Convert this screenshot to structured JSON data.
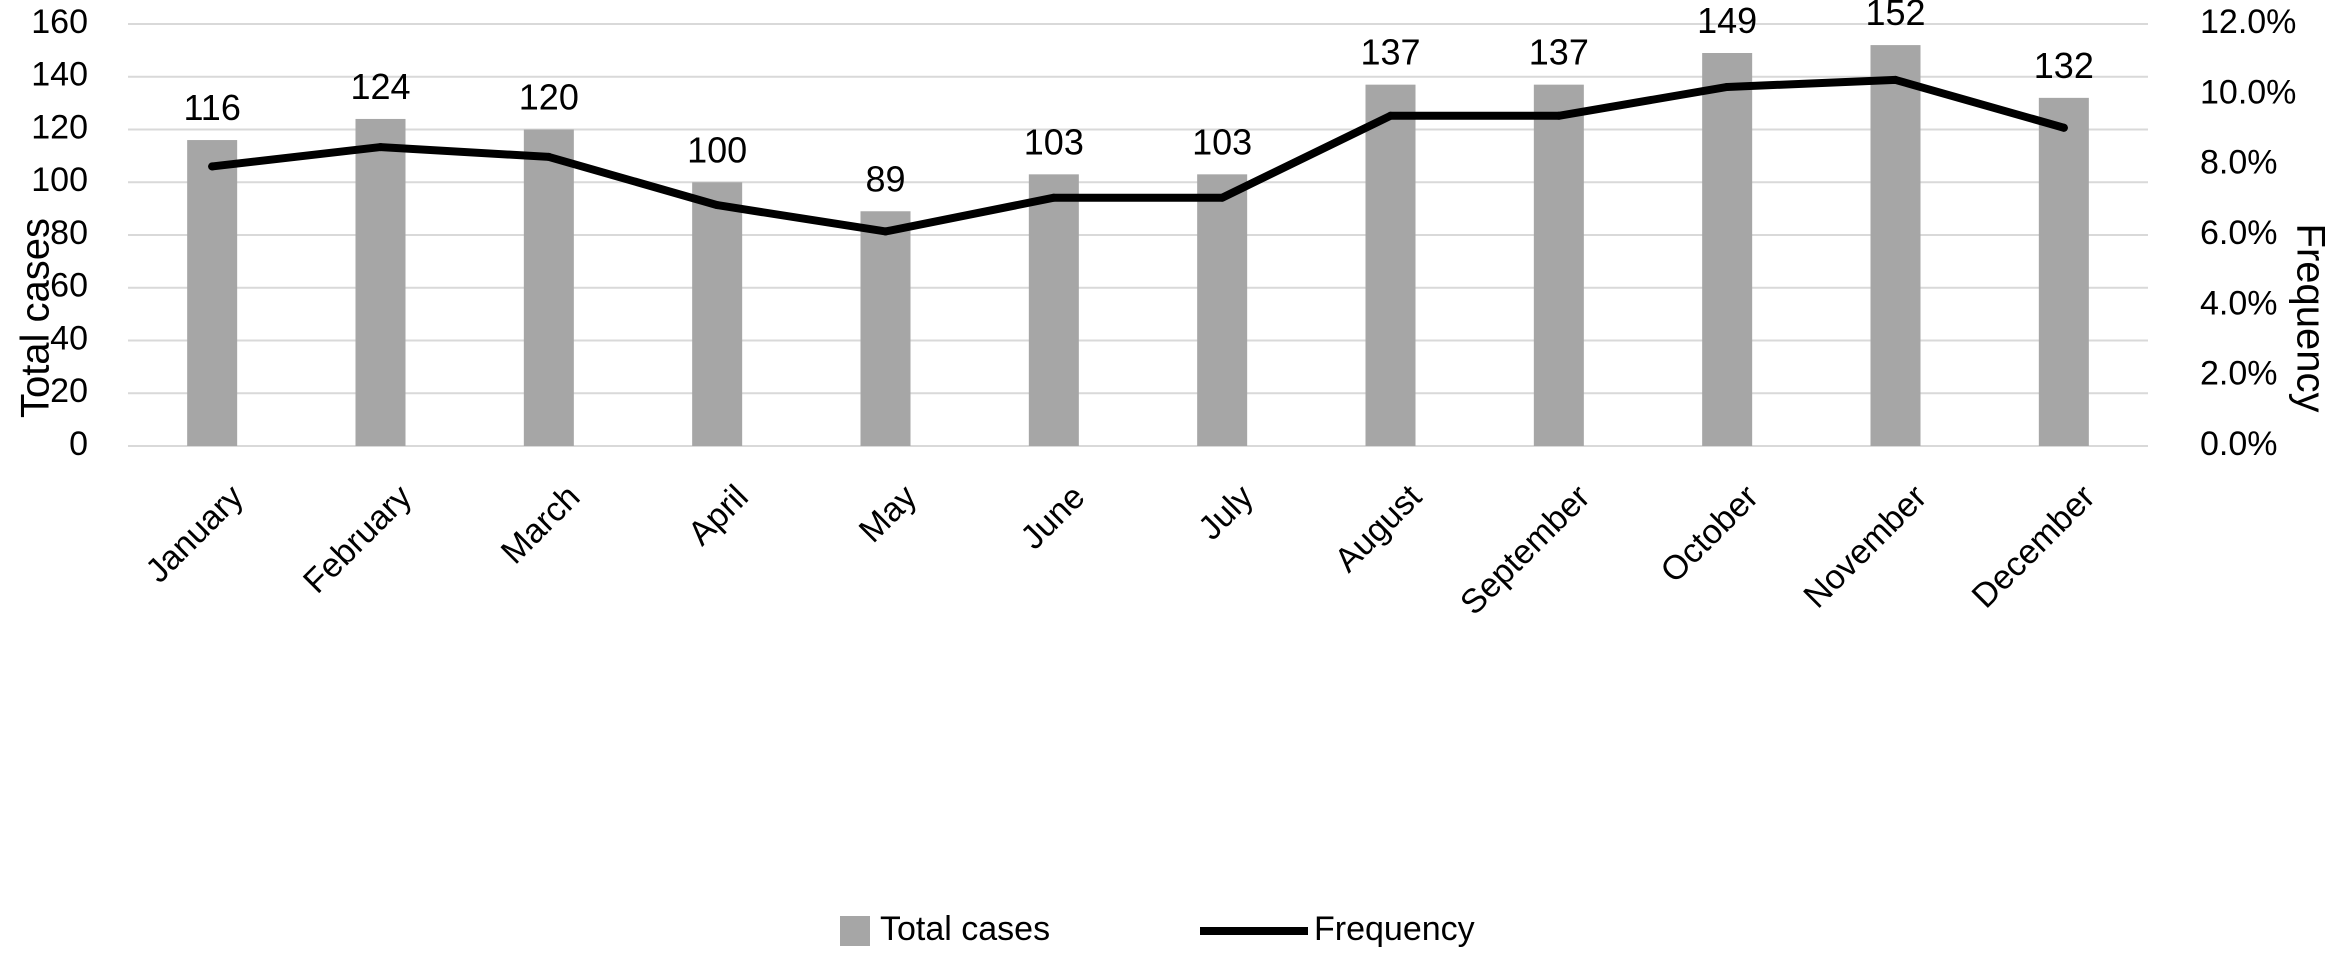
{
  "chart_data": {
    "type": "bar",
    "categories": [
      "January",
      "February",
      "March",
      "April",
      "May",
      "June",
      "July",
      "August",
      "September",
      "October",
      "November",
      "December"
    ],
    "series": [
      {
        "name": "Total cases",
        "type": "bar",
        "axis": "left",
        "values": [
          116,
          124,
          120,
          100,
          89,
          103,
          103,
          137,
          137,
          149,
          152,
          132
        ],
        "data_labels": [
          "116",
          "124",
          "120",
          "100",
          "89",
          "103",
          "103",
          "137",
          "137",
          "149",
          "152",
          "132"
        ],
        "color": "#a6a6a6"
      },
      {
        "name": "Frequency",
        "type": "line",
        "axis": "right",
        "values": [
          0.0795,
          0.085,
          0.0822,
          0.0685,
          0.061,
          0.0706,
          0.0706,
          0.0939,
          0.0939,
          0.1021,
          0.1041,
          0.0905
        ],
        "color": "#000000"
      }
    ],
    "ylabel": "Total cases",
    "y2label": "Frequency",
    "ylim": [
      0,
      160
    ],
    "y2lim": [
      0,
      0.12
    ],
    "yticks": [
      "0",
      "20",
      "40",
      "60",
      "80",
      "100",
      "120",
      "140",
      "160"
    ],
    "y2ticks": [
      "0.0%",
      "2.0%",
      "4.0%",
      "6.0%",
      "8.0%",
      "10.0%",
      "12.0%"
    ],
    "grid": true,
    "legend": {
      "position": "bottom",
      "entries": [
        "Total cases",
        "Frequency"
      ]
    },
    "colors": {
      "grid": "#d9d9d9",
      "bar": "#a6a6a6",
      "line": "#000000"
    }
  }
}
